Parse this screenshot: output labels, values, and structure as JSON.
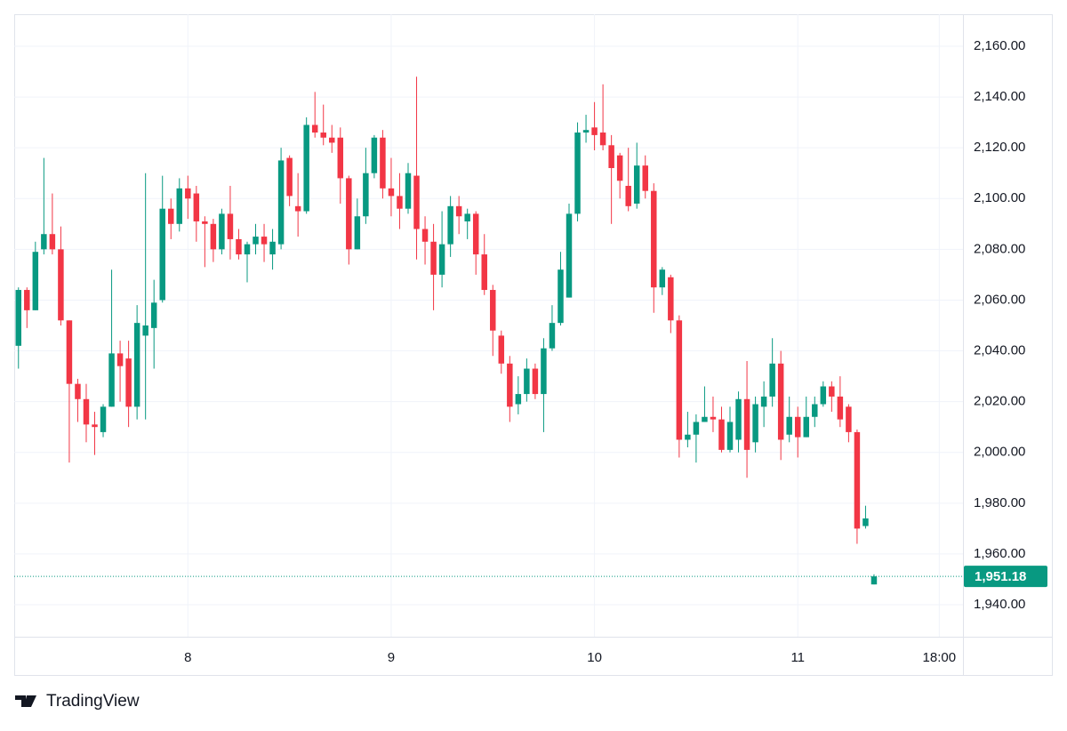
{
  "chart_data": {
    "type": "candlestick",
    "brand": "TradingView",
    "up_color": "#089981",
    "down_color": "#f23645",
    "grid": true,
    "xlim": [
      -20.5,
      91.5
    ],
    "xticks": [
      {
        "value": 0,
        "label": "8"
      },
      {
        "value": 24,
        "label": "9"
      },
      {
        "value": 48,
        "label": "10"
      },
      {
        "value": 72,
        "label": "11"
      },
      {
        "value": 88.7,
        "label": "18:00"
      }
    ],
    "ylim": [
      1927.4,
      2172.6
    ],
    "yticks": [
      {
        "value": 1940,
        "label": "1,940.00"
      },
      {
        "value": 1960,
        "label": "1,960.00"
      },
      {
        "value": 1980,
        "label": "1,980.00"
      },
      {
        "value": 2000,
        "label": "2,000.00"
      },
      {
        "value": 2020,
        "label": "2,020.00"
      },
      {
        "value": 2040,
        "label": "2,040.00"
      },
      {
        "value": 2060,
        "label": "2,060.00"
      },
      {
        "value": 2080,
        "label": "2,080.00"
      },
      {
        "value": 2100,
        "label": "2,100.00"
      },
      {
        "value": 2120,
        "label": "2,120.00"
      },
      {
        "value": 2140,
        "label": "2,140.00"
      },
      {
        "value": 2160,
        "label": "2,160.00"
      }
    ],
    "last_price": {
      "value": 1951.18,
      "label": "1,951.18"
    },
    "x": [
      -20,
      -19,
      -18,
      -17,
      -16,
      -15,
      -14,
      -13,
      -12,
      -11,
      -10,
      -9,
      -8,
      -7,
      -6,
      -5,
      -4,
      -3,
      -2,
      -1,
      0,
      1,
      2,
      3,
      4,
      5,
      6,
      7,
      8,
      9,
      10,
      11,
      12,
      13,
      14,
      15,
      16,
      17,
      18,
      19,
      20,
      21,
      22,
      23,
      24,
      25,
      26,
      27,
      28,
      29,
      30,
      31,
      32,
      33,
      34,
      35,
      36,
      37,
      38,
      39,
      40,
      41,
      42,
      43,
      44,
      45,
      46,
      47,
      48,
      49,
      50,
      51,
      52,
      53,
      54,
      55,
      56,
      57,
      58,
      59,
      60,
      61,
      62,
      63,
      64,
      65,
      66,
      67,
      68,
      69,
      70,
      71,
      72,
      73,
      74,
      75,
      76,
      77,
      78,
      79,
      80,
      81
    ],
    "ohlc": [
      [
        2042,
        2065,
        2033,
        2064
      ],
      [
        2064,
        2065,
        2049,
        2056
      ],
      [
        2056,
        2083,
        2056,
        2079
      ],
      [
        2080,
        2116,
        2078,
        2086
      ],
      [
        2086,
        2102,
        2078,
        2080
      ],
      [
        2080,
        2089,
        2050,
        2052
      ],
      [
        2052,
        2052,
        1996,
        2027
      ],
      [
        2027,
        2029,
        2012,
        2021
      ],
      [
        2021,
        2027,
        2004,
        2011
      ],
      [
        2011,
        2016,
        1999,
        2010
      ],
      [
        2008,
        2019,
        2006,
        2018
      ],
      [
        2018,
        2072,
        2018,
        2039
      ],
      [
        2039,
        2044,
        2020,
        2034
      ],
      [
        2037,
        2044,
        2010,
        2018
      ],
      [
        2018,
        2058,
        2013,
        2051
      ],
      [
        2046,
        2110,
        2013,
        2050
      ],
      [
        2049,
        2068,
        2033,
        2059
      ],
      [
        2060,
        2109,
        2059,
        2096
      ],
      [
        2096,
        2100,
        2084,
        2090
      ],
      [
        2090,
        2108,
        2087,
        2104
      ],
      [
        2104,
        2109,
        2092,
        2100
      ],
      [
        2102,
        2105,
        2083,
        2091
      ],
      [
        2091,
        2093,
        2073,
        2090
      ],
      [
        2090,
        2092,
        2075,
        2080
      ],
      [
        2080,
        2096,
        2078,
        2094
      ],
      [
        2094,
        2105,
        2076,
        2084
      ],
      [
        2084,
        2088,
        2076,
        2078
      ],
      [
        2078,
        2083,
        2067,
        2082
      ],
      [
        2082,
        2090,
        2078,
        2085
      ],
      [
        2085,
        2090,
        2075,
        2082
      ],
      [
        2078,
        2088,
        2072,
        2083
      ],
      [
        2082,
        2120,
        2080,
        2115
      ],
      [
        2116,
        2117,
        2097,
        2101
      ],
      [
        2097,
        2110,
        2085,
        2095
      ],
      [
        2095,
        2132,
        2094,
        2129
      ],
      [
        2129,
        2142,
        2124,
        2126
      ],
      [
        2126,
        2137,
        2121,
        2124
      ],
      [
        2124,
        2129,
        2118,
        2122
      ],
      [
        2124,
        2128,
        2098,
        2108
      ],
      [
        2108,
        2109,
        2074,
        2080
      ],
      [
        2080,
        2100,
        2080,
        2093
      ],
      [
        2093,
        2120,
        2090,
        2110
      ],
      [
        2110,
        2125,
        2108,
        2124
      ],
      [
        2124,
        2127,
        2100,
        2104
      ],
      [
        2104,
        2116,
        2093,
        2101
      ],
      [
        2101,
        2110,
        2088,
        2096
      ],
      [
        2096,
        2114,
        2094,
        2110
      ],
      [
        2109,
        2148,
        2076,
        2088
      ],
      [
        2088,
        2093,
        2074,
        2083
      ],
      [
        2083,
        2090,
        2056,
        2070
      ],
      [
        2070,
        2095,
        2065,
        2082
      ],
      [
        2082,
        2101,
        2077,
        2097
      ],
      [
        2097,
        2101,
        2086,
        2093
      ],
      [
        2091,
        2096,
        2084,
        2094
      ],
      [
        2094,
        2095,
        2070,
        2078
      ],
      [
        2078,
        2086,
        2062,
        2064
      ],
      [
        2064,
        2066,
        2038,
        2048
      ],
      [
        2046,
        2048,
        2031,
        2035
      ],
      [
        2035,
        2038,
        2012,
        2018
      ],
      [
        2019,
        2030,
        2015,
        2023
      ],
      [
        2023,
        2037,
        2020,
        2033
      ],
      [
        2033,
        2035,
        2021,
        2023
      ],
      [
        2023,
        2045,
        2008,
        2041
      ],
      [
        2041,
        2058,
        2040,
        2051
      ],
      [
        2051,
        2079,
        2050,
        2072
      ],
      [
        2061,
        2098,
        2061,
        2094
      ],
      [
        2094,
        2130,
        2091,
        2126
      ],
      [
        2126,
        2133,
        2122,
        2127
      ],
      [
        2128,
        2138,
        2119,
        2125
      ],
      [
        2126,
        2145,
        2119,
        2121
      ],
      [
        2121,
        2125,
        2090,
        2112
      ],
      [
        2117,
        2118,
        2100,
        2107
      ],
      [
        2105,
        2120,
        2095,
        2097
      ],
      [
        2098,
        2122,
        2096,
        2113
      ],
      [
        2113,
        2117,
        2100,
        2103
      ],
      [
        2103,
        2106,
        2055,
        2065
      ],
      [
        2065,
        2073,
        2062,
        2072
      ],
      [
        2069,
        2070,
        2047,
        2052
      ],
      [
        2052,
        2054,
        1998,
        2005
      ],
      [
        2005,
        2016,
        2002,
        2007
      ],
      [
        2007,
        2015,
        1996,
        2012
      ],
      [
        2012,
        2026,
        2012,
        2014
      ],
      [
        2014,
        2022,
        2008,
        2013
      ],
      [
        2013,
        2018,
        2000,
        2001
      ],
      [
        2001,
        2018,
        2000,
        2012
      ],
      [
        2005,
        2024,
        2000,
        2021
      ],
      [
        2021,
        2036,
        1990,
        2001
      ],
      [
        2004,
        2022,
        2000,
        2019
      ],
      [
        2018,
        2028,
        2010,
        2022
      ],
      [
        2022,
        2045,
        2018,
        2035
      ],
      [
        2035,
        2040,
        1997,
        2005
      ],
      [
        2007,
        2022,
        2004,
        2014
      ],
      [
        2014,
        2018,
        1998,
        2006
      ],
      [
        2006,
        2022,
        2006,
        2014
      ],
      [
        2014,
        2022,
        2010,
        2019
      ],
      [
        2019,
        2028,
        2018,
        2026
      ],
      [
        2026,
        2028,
        2016,
        2022
      ],
      [
        2022,
        2030,
        2010,
        2013
      ],
      [
        2018,
        2019,
        2004,
        2008
      ],
      [
        2008,
        2009,
        1964,
        1970
      ],
      [
        1971,
        1979,
        1970,
        1974
      ],
      [
        1948,
        1952,
        1948,
        1951.18
      ]
    ]
  }
}
